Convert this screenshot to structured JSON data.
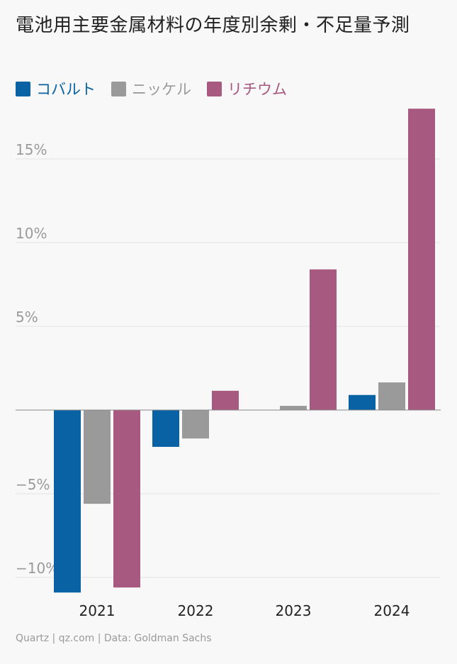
{
  "chart_data": {
    "type": "bar",
    "title": "電池用主要金属材料の年度別余剰・不足量予測",
    "categories": [
      "2021",
      "2022",
      "2023",
      "2024"
    ],
    "series": [
      {
        "name": "コバルト",
        "color": "#0862a3",
        "values": [
          -10.9,
          -2.2,
          0.0,
          0.9
        ]
      },
      {
        "name": "ニッケル",
        "color": "#9a9a9a",
        "values": [
          -5.6,
          -1.7,
          0.25,
          1.65
        ]
      },
      {
        "name": "リチウム",
        "color": "#a7597f",
        "values": [
          -10.6,
          1.15,
          8.4,
          18.0
        ]
      }
    ],
    "yticks": [
      -10,
      -5,
      5,
      10,
      15
    ],
    "ytick_labels": [
      "−10%",
      "−5%",
      "5%",
      "10%",
      "15%"
    ],
    "ylim": [
      -11,
      18
    ],
    "grid": true,
    "legend_position": "top-left",
    "source": "Quartz | qz.com | Data: Goldman Sachs"
  }
}
